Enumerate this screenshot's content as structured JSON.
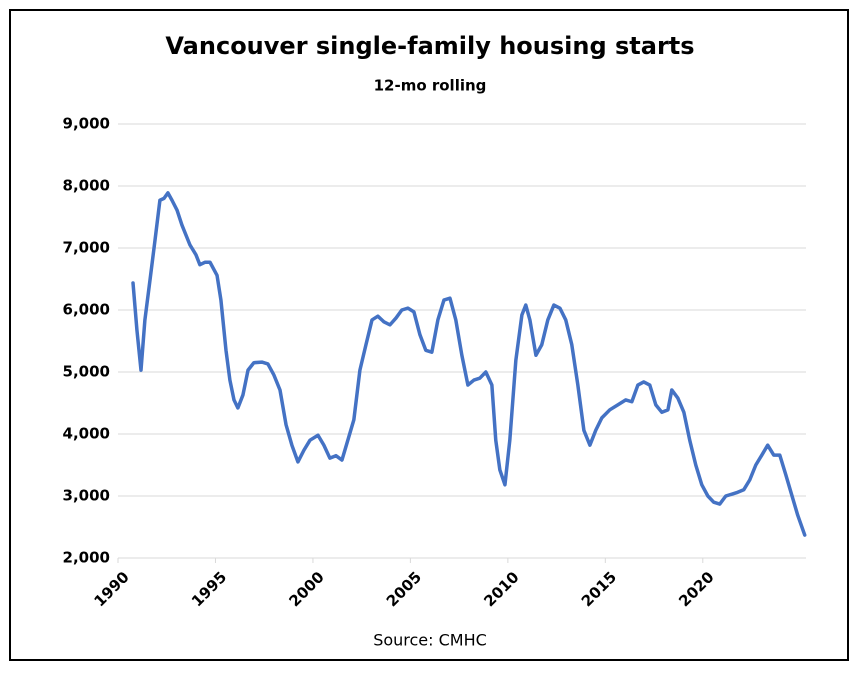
{
  "chart_data": {
    "type": "line",
    "title": "Vancouver single-family housing starts",
    "subtitle": "12-mo rolling",
    "source": "Source: CMHC",
    "xlim": [
      1990,
      2025.5
    ],
    "xticks": [
      1990,
      1995,
      2000,
      2005,
      2010,
      2015,
      2020
    ],
    "ylim": [
      2000,
      9000
    ],
    "yticks": [
      {
        "value": 2000,
        "label": "2,000"
      },
      {
        "value": 3000,
        "label": "3,000"
      },
      {
        "value": 4000,
        "label": "4,000"
      },
      {
        "value": 5000,
        "label": "5,000"
      },
      {
        "value": 6000,
        "label": "6,000"
      },
      {
        "value": 7000,
        "label": "7,000"
      },
      {
        "value": 8000,
        "label": "8,000"
      },
      {
        "value": 9000,
        "label": "9,000"
      }
    ],
    "grid": true,
    "series": [
      {
        "color": "#4472c4",
        "x": [
          1990.77,
          1990.97,
          1991.18,
          1991.38,
          1991.64,
          1991.9,
          1992.15,
          1992.36,
          1992.56,
          1992.77,
          1993.03,
          1993.28,
          1993.69,
          1994.0,
          1994.2,
          1994.46,
          1994.72,
          1995.08,
          1995.28,
          1995.54,
          1995.74,
          1995.95,
          1996.15,
          1996.41,
          1996.67,
          1996.97,
          1997.38,
          1997.69,
          1998.0,
          1998.31,
          1998.62,
          1998.92,
          1999.23,
          1999.54,
          1999.85,
          2000.26,
          2000.56,
          2000.87,
          2001.18,
          2001.49,
          2001.79,
          2002.1,
          2002.41,
          2002.72,
          2003.03,
          2003.33,
          2003.64,
          2003.95,
          2004.26,
          2004.56,
          2004.87,
          2005.18,
          2005.49,
          2005.79,
          2006.1,
          2006.41,
          2006.72,
          2007.03,
          2007.33,
          2007.64,
          2007.95,
          2008.26,
          2008.56,
          2008.87,
          2009.18,
          2009.38,
          2009.59,
          2009.85,
          2010.1,
          2010.41,
          2010.72,
          2010.92,
          2011.13,
          2011.44,
          2011.74,
          2012.05,
          2012.36,
          2012.67,
          2012.97,
          2013.28,
          2013.59,
          2013.9,
          2014.21,
          2014.51,
          2014.82,
          2015.23,
          2015.64,
          2016.05,
          2016.36,
          2016.67,
          2016.97,
          2017.28,
          2017.59,
          2017.9,
          2018.21,
          2018.41,
          2018.72,
          2019.03,
          2019.33,
          2019.64,
          2019.95,
          2020.26,
          2020.56,
          2020.87,
          2021.18,
          2021.49,
          2021.79,
          2022.1,
          2022.41,
          2022.72,
          2023.03,
          2023.33,
          2023.64,
          2023.95,
          2024.26,
          2024.56,
          2024.87,
          2025.23
        ],
        "values": [
          6435,
          5680,
          5030,
          5840,
          6480,
          7130,
          7770,
          7800,
          7890,
          7770,
          7610,
          7370,
          7050,
          6890,
          6730,
          6770,
          6770,
          6560,
          6160,
          5350,
          4870,
          4550,
          4420,
          4630,
          5030,
          5150,
          5160,
          5130,
          4950,
          4710,
          4150,
          3820,
          3550,
          3740,
          3900,
          3980,
          3820,
          3610,
          3650,
          3580,
          3900,
          4230,
          5030,
          5440,
          5840,
          5900,
          5810,
          5760,
          5870,
          6000,
          6030,
          5970,
          5600,
          5350,
          5320,
          5840,
          6160,
          6190,
          5840,
          5270,
          4790,
          4870,
          4900,
          5000,
          4790,
          3900,
          3420,
          3180,
          3900,
          5190,
          5920,
          6080,
          5840,
          5270,
          5440,
          5840,
          6080,
          6030,
          5840,
          5440,
          4790,
          4060,
          3820,
          4060,
          4260,
          4390,
          4470,
          4550,
          4520,
          4790,
          4840,
          4790,
          4470,
          4350,
          4390,
          4710,
          4580,
          4350,
          3900,
          3500,
          3180,
          3000,
          2900,
          2870,
          3000,
          3030,
          3060,
          3100,
          3260,
          3500,
          3660,
          3820,
          3660,
          3660,
          3340,
          3020,
          2690,
          2370
        ]
      }
    ]
  }
}
